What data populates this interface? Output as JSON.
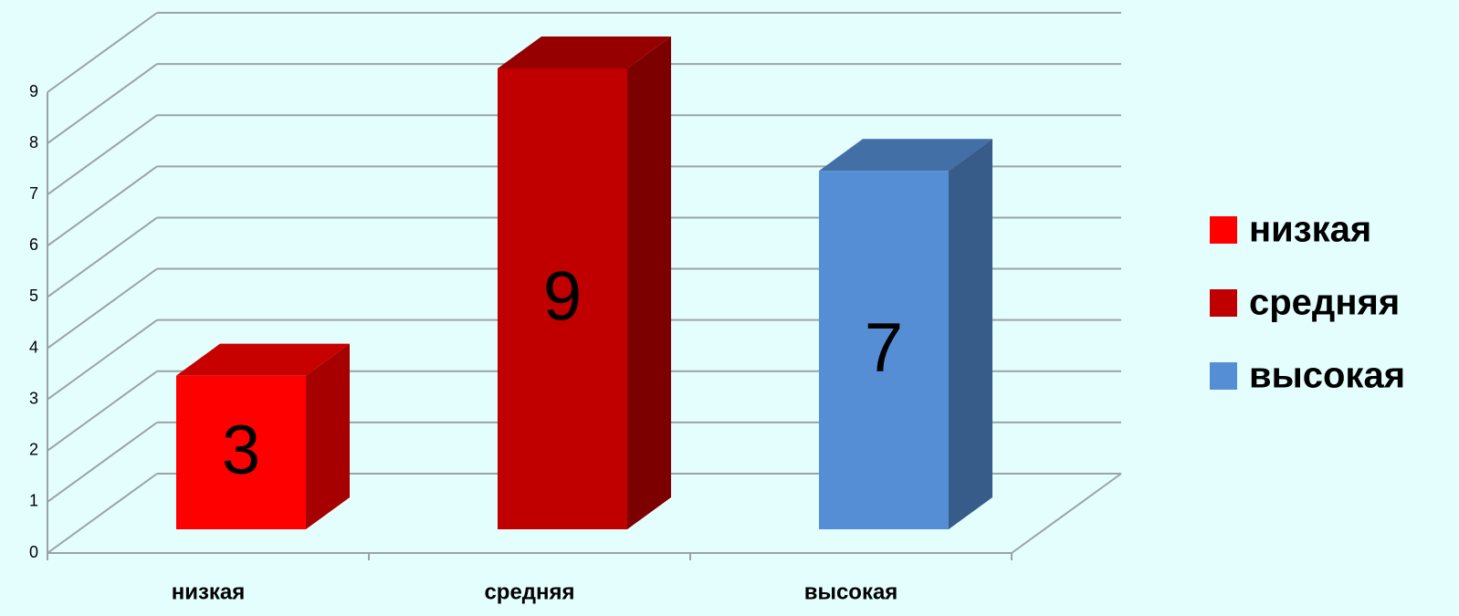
{
  "chart_data": {
    "type": "bar3d",
    "categories": [
      "низкая",
      "средняя",
      "высокая"
    ],
    "values": [
      3,
      9,
      7
    ],
    "colors": [
      "#ff0000",
      "#c00000",
      "#558ed5"
    ],
    "ylim": [
      0,
      9
    ],
    "yticks": [
      0,
      1,
      2,
      3,
      4,
      5,
      6,
      7,
      8,
      9
    ],
    "grid": true,
    "legend": "right"
  }
}
